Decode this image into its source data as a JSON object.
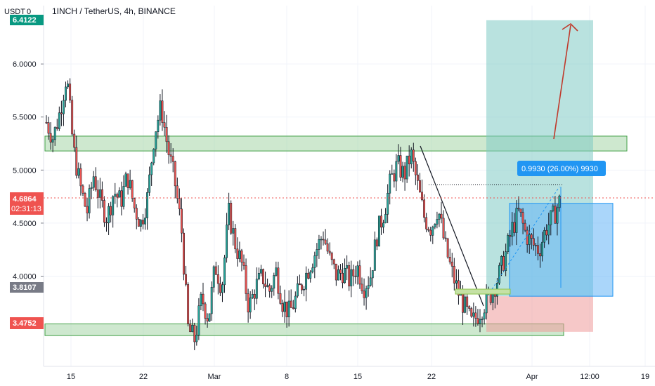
{
  "header": {
    "currency_label": "USDT",
    "currency_badge": "0",
    "symbol_line": "1INCH / TetherUS, 4h, BINANCE"
  },
  "colors": {
    "up_candle": "#26a69a",
    "down_candle": "#ef5350",
    "candle_body": "#131722",
    "zone_fill": "#a5d6a7",
    "zone_border": "#43a047",
    "target_fill": "#80cbc4",
    "position_fill": "#64b5f6",
    "stop_fill": "#ef9a9a",
    "arrow": "#c0392b",
    "grid": "#f0f3fa",
    "last_price_line": "#ef5350",
    "label_blue": "#2196f3",
    "tag_top": "#089981",
    "tag_last": "#ef5350",
    "tag_entry": "#787b86",
    "tag_bottom": "#ef5350"
  },
  "price_tags": {
    "top": "6.4122",
    "last": "4.6864",
    "countdown": "02:31:13",
    "entry": "3.8107",
    "stop": "3.4752"
  },
  "measure_label": "0.9930 (26.00%) 9930",
  "chart_data": {
    "type": "candlestick",
    "title": "1INCH / TetherUS, 4h, BINANCE",
    "ylim": [
      3.15,
      6.55
    ],
    "y_ticks": [
      "6.0000",
      "5.5000",
      "5.0000",
      "4.5000",
      "4.0000"
    ],
    "y_tick_values": [
      6.0,
      5.5,
      5.0,
      4.5,
      4.0
    ],
    "x_ticks": [
      "15",
      "22",
      "Mar",
      "8",
      "15",
      "22",
      "Apr",
      "12:00",
      "19"
    ],
    "grid": true,
    "horizontal_zones": [
      {
        "name": "resistance",
        "from": 5.18,
        "to": 5.32
      },
      {
        "name": "support",
        "from": 3.44,
        "to": 3.55
      }
    ],
    "position": {
      "entry": 3.8107,
      "stop": 3.4752,
      "target": 6.4122,
      "current": 4.6864,
      "change": 0.993,
      "change_pct": 26.0
    },
    "close_path": [
      5.45,
      5.3,
      5.55,
      5.9,
      5.2,
      4.85,
      4.6,
      4.95,
      4.7,
      4.55,
      4.8,
      4.7,
      4.95,
      4.65,
      4.5,
      4.75,
      5.35,
      5.6,
      5.2,
      4.9,
      4.45,
      3.5,
      3.4,
      3.8,
      3.6,
      4.1,
      3.9,
      4.6,
      4.3,
      4.1,
      3.7,
      3.9,
      4.0,
      3.85,
      4.05,
      3.75,
      3.65,
      3.8,
      3.95,
      4.1,
      4.25,
      4.4,
      4.15,
      4.0,
      4.05,
      3.95,
      4.1,
      3.9,
      4.0,
      4.4,
      4.6,
      4.9,
      5.05,
      4.95,
      5.15,
      4.85,
      4.55,
      4.45,
      4.65,
      4.3,
      4.05,
      3.85,
      3.7,
      3.55,
      3.65,
      3.75,
      3.85,
      4.0,
      4.2,
      4.45,
      4.6,
      4.4,
      4.3,
      4.25,
      4.45,
      4.55,
      4.7
    ]
  }
}
